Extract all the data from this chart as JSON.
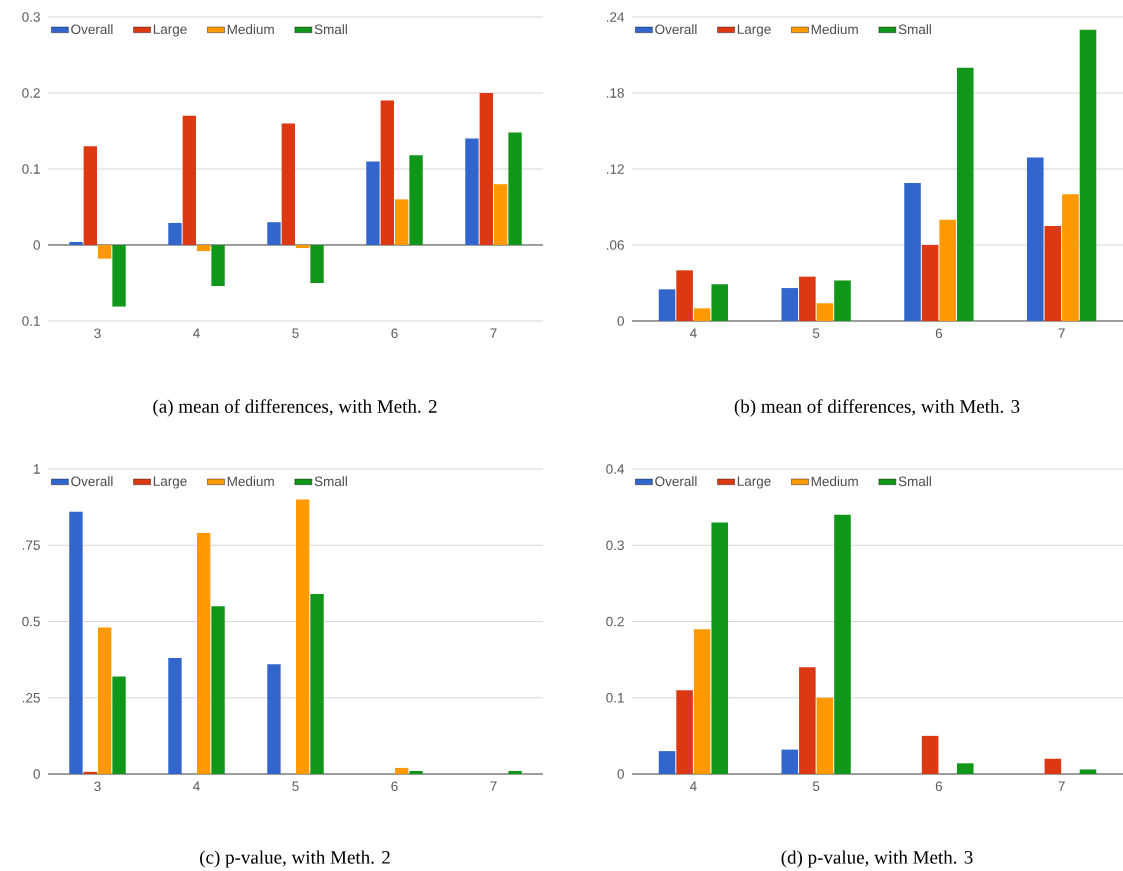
{
  "chart_data": [
    {
      "type": "bar",
      "title": "(a) mean of differences, with Meth. 2",
      "categories": [
        "3",
        "4",
        "5",
        "6",
        "7"
      ],
      "series": [
        {
          "name": "Overall",
          "color": "#3366cc",
          "values": [
            0.004,
            0.029,
            0.03,
            0.11,
            0.14
          ]
        },
        {
          "name": "Large",
          "color": "#dc3912",
          "values": [
            0.13,
            0.17,
            0.16,
            0.19,
            0.2
          ]
        },
        {
          "name": "Medium",
          "color": "#ff9900",
          "values": [
            -0.018,
            -0.008,
            -0.004,
            0.06,
            0.08
          ]
        },
        {
          "name": "Small",
          "color": "#109618",
          "values": [
            -0.081,
            -0.054,
            -0.05,
            0.118,
            0.148
          ]
        }
      ],
      "ylim": [
        -0.1,
        0.3
      ],
      "yticks": [
        {
          "value": -0.1,
          "label": "0.1"
        },
        0,
        0.1,
        0.2,
        0.3
      ],
      "grid": "y",
      "legend": "top left"
    },
    {
      "type": "bar",
      "title": "(b) mean of differences, with Meth. 3",
      "categories": [
        "4",
        "5",
        "6",
        "7"
      ],
      "series": [
        {
          "name": "Overall",
          "color": "#3366cc",
          "values": [
            0.025,
            0.026,
            0.109,
            0.129
          ]
        },
        {
          "name": "Large",
          "color": "#dc3912",
          "values": [
            0.04,
            0.035,
            0.06,
            0.075
          ]
        },
        {
          "name": "Medium",
          "color": "#ff9900",
          "values": [
            0.01,
            0.014,
            0.08,
            0.1
          ]
        },
        {
          "name": "Small",
          "color": "#109618",
          "values": [
            0.029,
            0.032,
            0.2,
            0.23
          ]
        }
      ],
      "ylim": [
        0,
        0.24
      ],
      "yticks": [
        0,
        {
          "value": 0.06,
          "label": ".06"
        },
        {
          "value": 0.12,
          "label": ".12"
        },
        {
          "value": 0.18,
          "label": ".18"
        },
        {
          "value": 0.24,
          "label": ".24"
        }
      ],
      "grid": "y",
      "legend": "top left"
    },
    {
      "type": "bar",
      "title": "(c) p-value, with Meth. 2",
      "categories": [
        "3",
        "4",
        "5",
        "6",
        "7"
      ],
      "series": [
        {
          "name": "Overall",
          "color": "#3366cc",
          "values": [
            0.86,
            0.38,
            0.36,
            0,
            0
          ]
        },
        {
          "name": "Large",
          "color": "#dc3912",
          "values": [
            0.007,
            0,
            0,
            0,
            0
          ]
        },
        {
          "name": "Medium",
          "color": "#ff9900",
          "values": [
            0.48,
            0.79,
            0.9,
            0.02,
            0
          ]
        },
        {
          "name": "Small",
          "color": "#109618",
          "values": [
            0.32,
            0.55,
            0.59,
            0.01,
            0.01
          ]
        }
      ],
      "ylim": [
        0,
        1
      ],
      "yticks": [
        0,
        {
          "value": 0.25,
          "label": ".25"
        },
        0.5,
        {
          "value": 0.75,
          "label": ".75"
        },
        1
      ],
      "grid": "y",
      "legend": "top left"
    },
    {
      "type": "bar",
      "title": "(d) p-value, with Meth. 3",
      "categories": [
        "4",
        "5",
        "6",
        "7"
      ],
      "series": [
        {
          "name": "Overall",
          "color": "#3366cc",
          "values": [
            0.03,
            0.032,
            0,
            0
          ]
        },
        {
          "name": "Large",
          "color": "#dc3912",
          "values": [
            0.11,
            0.14,
            0.05,
            0.02
          ]
        },
        {
          "name": "Medium",
          "color": "#ff9900",
          "values": [
            0.19,
            0.1,
            0,
            0
          ]
        },
        {
          "name": "Small",
          "color": "#109618",
          "values": [
            0.33,
            0.34,
            0.014,
            0.006
          ]
        }
      ],
      "ylim": [
        0,
        0.4
      ],
      "yticks": [
        0,
        0.1,
        0.2,
        0.3,
        0.4
      ],
      "grid": "y",
      "legend": "top left"
    }
  ]
}
